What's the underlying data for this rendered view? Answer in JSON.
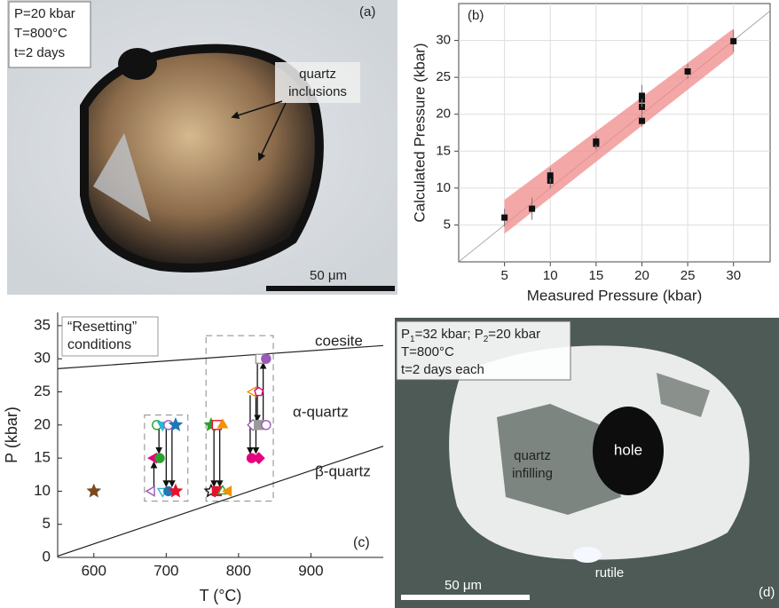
{
  "panel_a": {
    "label": "(a)",
    "conditions": [
      "P=20 kbar",
      "T=800°C",
      "t=2 days"
    ],
    "annotation": [
      "quartz",
      "inclusions"
    ],
    "scale_bar": "50 μm"
  },
  "chart_data": [
    {
      "type": "scatter",
      "label": "(b)",
      "xlabel": "Measured Pressure (kbar)",
      "ylabel": "Calculated Pressure (kbar)",
      "x": [
        5,
        8,
        10,
        10,
        15,
        15,
        20,
        20,
        20,
        20,
        25,
        30
      ],
      "values": [
        6,
        7.2,
        11,
        11.7,
        16,
        16.3,
        19.1,
        21,
        22,
        22.5,
        25.8,
        29.9
      ],
      "errors": [
        1.2,
        1.5,
        1,
        1,
        0.8,
        0.8,
        0.8,
        1,
        1,
        1.5,
        1,
        1.5
      ],
      "color": "#111111",
      "band": {
        "x": [
          5,
          30
        ],
        "upper": [
          8.4,
          31.6
        ],
        "lower": [
          3.8,
          28.2
        ],
        "color": "#f08a8a"
      },
      "xlim": [
        0,
        34
      ],
      "ylim": [
        0,
        35
      ],
      "xticks": [
        5,
        10,
        15,
        20,
        25,
        30
      ],
      "yticks": [
        5,
        10,
        15,
        20,
        25,
        30
      ],
      "grid": true
    },
    {
      "type": "phase",
      "label": "(c)",
      "title": [
        "“Resetting”",
        "conditions"
      ],
      "xlabel": "T (°C)",
      "ylabel": "P (kbar)",
      "xlim": [
        550,
        1000
      ],
      "ylim": [
        0,
        37
      ],
      "xticks": [
        600,
        700,
        800,
        900
      ],
      "yticks": [
        0,
        5,
        10,
        15,
        20,
        25,
        30,
        35
      ],
      "boundaries": [
        {
          "label": "coesite",
          "x": [
            550,
            1000
          ],
          "y": [
            28.5,
            32
          ]
        },
        {
          "label": "β-quartz",
          "x": [
            550,
            1000
          ],
          "y": [
            0.2,
            16.8
          ]
        }
      ],
      "field_label": "α-quartz",
      "boxes": [
        {
          "x": [
            670,
            730
          ],
          "y": [
            8.5,
            21.5
          ]
        },
        {
          "x": [
            755,
            848
          ],
          "y": [
            8.5,
            33.5
          ]
        }
      ],
      "points": [
        {
          "x": 600,
          "y": 10,
          "marker": "star",
          "filled": true,
          "color": "#7b4a1e"
        },
        {
          "x": 687,
          "y": 20,
          "marker": "circle",
          "filled": false,
          "color": "#2ca02c"
        },
        {
          "x": 695,
          "y": 20,
          "marker": "tri-down",
          "filled": true,
          "color": "#29b6d8"
        },
        {
          "x": 703,
          "y": 20,
          "marker": "circle",
          "filled": false,
          "color": "#9b59b6"
        },
        {
          "x": 713,
          "y": 20,
          "marker": "star",
          "filled": true,
          "color": "#1f77b4"
        },
        {
          "x": 683,
          "y": 15,
          "marker": "tri-left",
          "filled": true,
          "color": "#e6007e"
        },
        {
          "x": 691,
          "y": 15,
          "marker": "circle",
          "filled": true,
          "color": "#2ca02c"
        },
        {
          "x": 680,
          "y": 10,
          "marker": "tri-left",
          "filled": false,
          "color": "#9b59b6"
        },
        {
          "x": 695,
          "y": 10,
          "marker": "tri-down",
          "filled": false,
          "color": "#29b6d8"
        },
        {
          "x": 703,
          "y": 10,
          "marker": "circle",
          "filled": true,
          "color": "#1f77b4"
        },
        {
          "x": 713,
          "y": 10,
          "marker": "star",
          "filled": true,
          "color": "#e8112d"
        },
        {
          "x": 762,
          "y": 20,
          "marker": "star",
          "filled": true,
          "color": "#2ca02c"
        },
        {
          "x": 770,
          "y": 20,
          "marker": "square",
          "filled": false,
          "color": "#e8112d"
        },
        {
          "x": 778,
          "y": 20,
          "marker": "tri-up",
          "filled": true,
          "color": "#f39200"
        },
        {
          "x": 762,
          "y": 10,
          "marker": "star",
          "filled": false,
          "color": "#111111"
        },
        {
          "x": 770,
          "y": 10,
          "marker": "square",
          "filled": true,
          "color": "#e8112d"
        },
        {
          "x": 778,
          "y": 10,
          "marker": "tri-up",
          "filled": false,
          "color": "#2ca02c"
        },
        {
          "x": 786,
          "y": 10,
          "marker": "tri-left",
          "filled": true,
          "color": "#f39200"
        },
        {
          "x": 820,
          "y": 25,
          "marker": "tri-left",
          "filled": false,
          "color": "#f39200"
        },
        {
          "x": 828,
          "y": 25,
          "marker": "pentagon",
          "filled": false,
          "color": "#e6007e"
        },
        {
          "x": 818,
          "y": 15,
          "marker": "circle",
          "filled": true,
          "color": "#e6007e"
        },
        {
          "x": 828,
          "y": 15,
          "marker": "diamond",
          "filled": true,
          "color": "#e6007e"
        },
        {
          "x": 820,
          "y": 20,
          "marker": "diamond",
          "filled": false,
          "color": "#9b59b6"
        },
        {
          "x": 828,
          "y": 20,
          "marker": "square",
          "filled": true,
          "color": "#999999"
        },
        {
          "x": 838,
          "y": 20,
          "marker": "circle",
          "filled": false,
          "color": "#9b59b6"
        },
        {
          "x": 830,
          "y": 30,
          "marker": "square",
          "filled": false,
          "color": "#999999"
        },
        {
          "x": 838,
          "y": 30,
          "marker": "circle",
          "filled": true,
          "color": "#9b59b6"
        }
      ],
      "arrows": [
        {
          "x": 690,
          "from": 19.5,
          "to": 15.8
        },
        {
          "x": 700,
          "from": 19.5,
          "to": 10.8
        },
        {
          "x": 708,
          "from": 19.5,
          "to": 10.8
        },
        {
          "x": 683,
          "from": 10.5,
          "to": 14.3
        },
        {
          "x": 766,
          "from": 19.5,
          "to": 10.8
        },
        {
          "x": 774,
          "from": 19.5,
          "to": 10.8
        },
        {
          "x": 816,
          "from": 24.5,
          "to": 15.8
        },
        {
          "x": 824,
          "from": 24.5,
          "to": 15.8
        },
        {
          "x": 834,
          "from": 20.5,
          "to": 29.3
        },
        {
          "x": 826,
          "from": 29.5,
          "to": 20.7
        }
      ]
    }
  ],
  "panel_d": {
    "label": "(d)",
    "pressure": [
      "P",
      "1",
      "=32 kbar; P",
      "2",
      "=20 kbar"
    ],
    "conditions": [
      "T=800°C",
      "t=2 days each"
    ],
    "annotations": {
      "infill": [
        "quartz",
        "infilling"
      ],
      "hole": "hole",
      "rutile": "rutile"
    },
    "scale_bar": "50 μm"
  }
}
